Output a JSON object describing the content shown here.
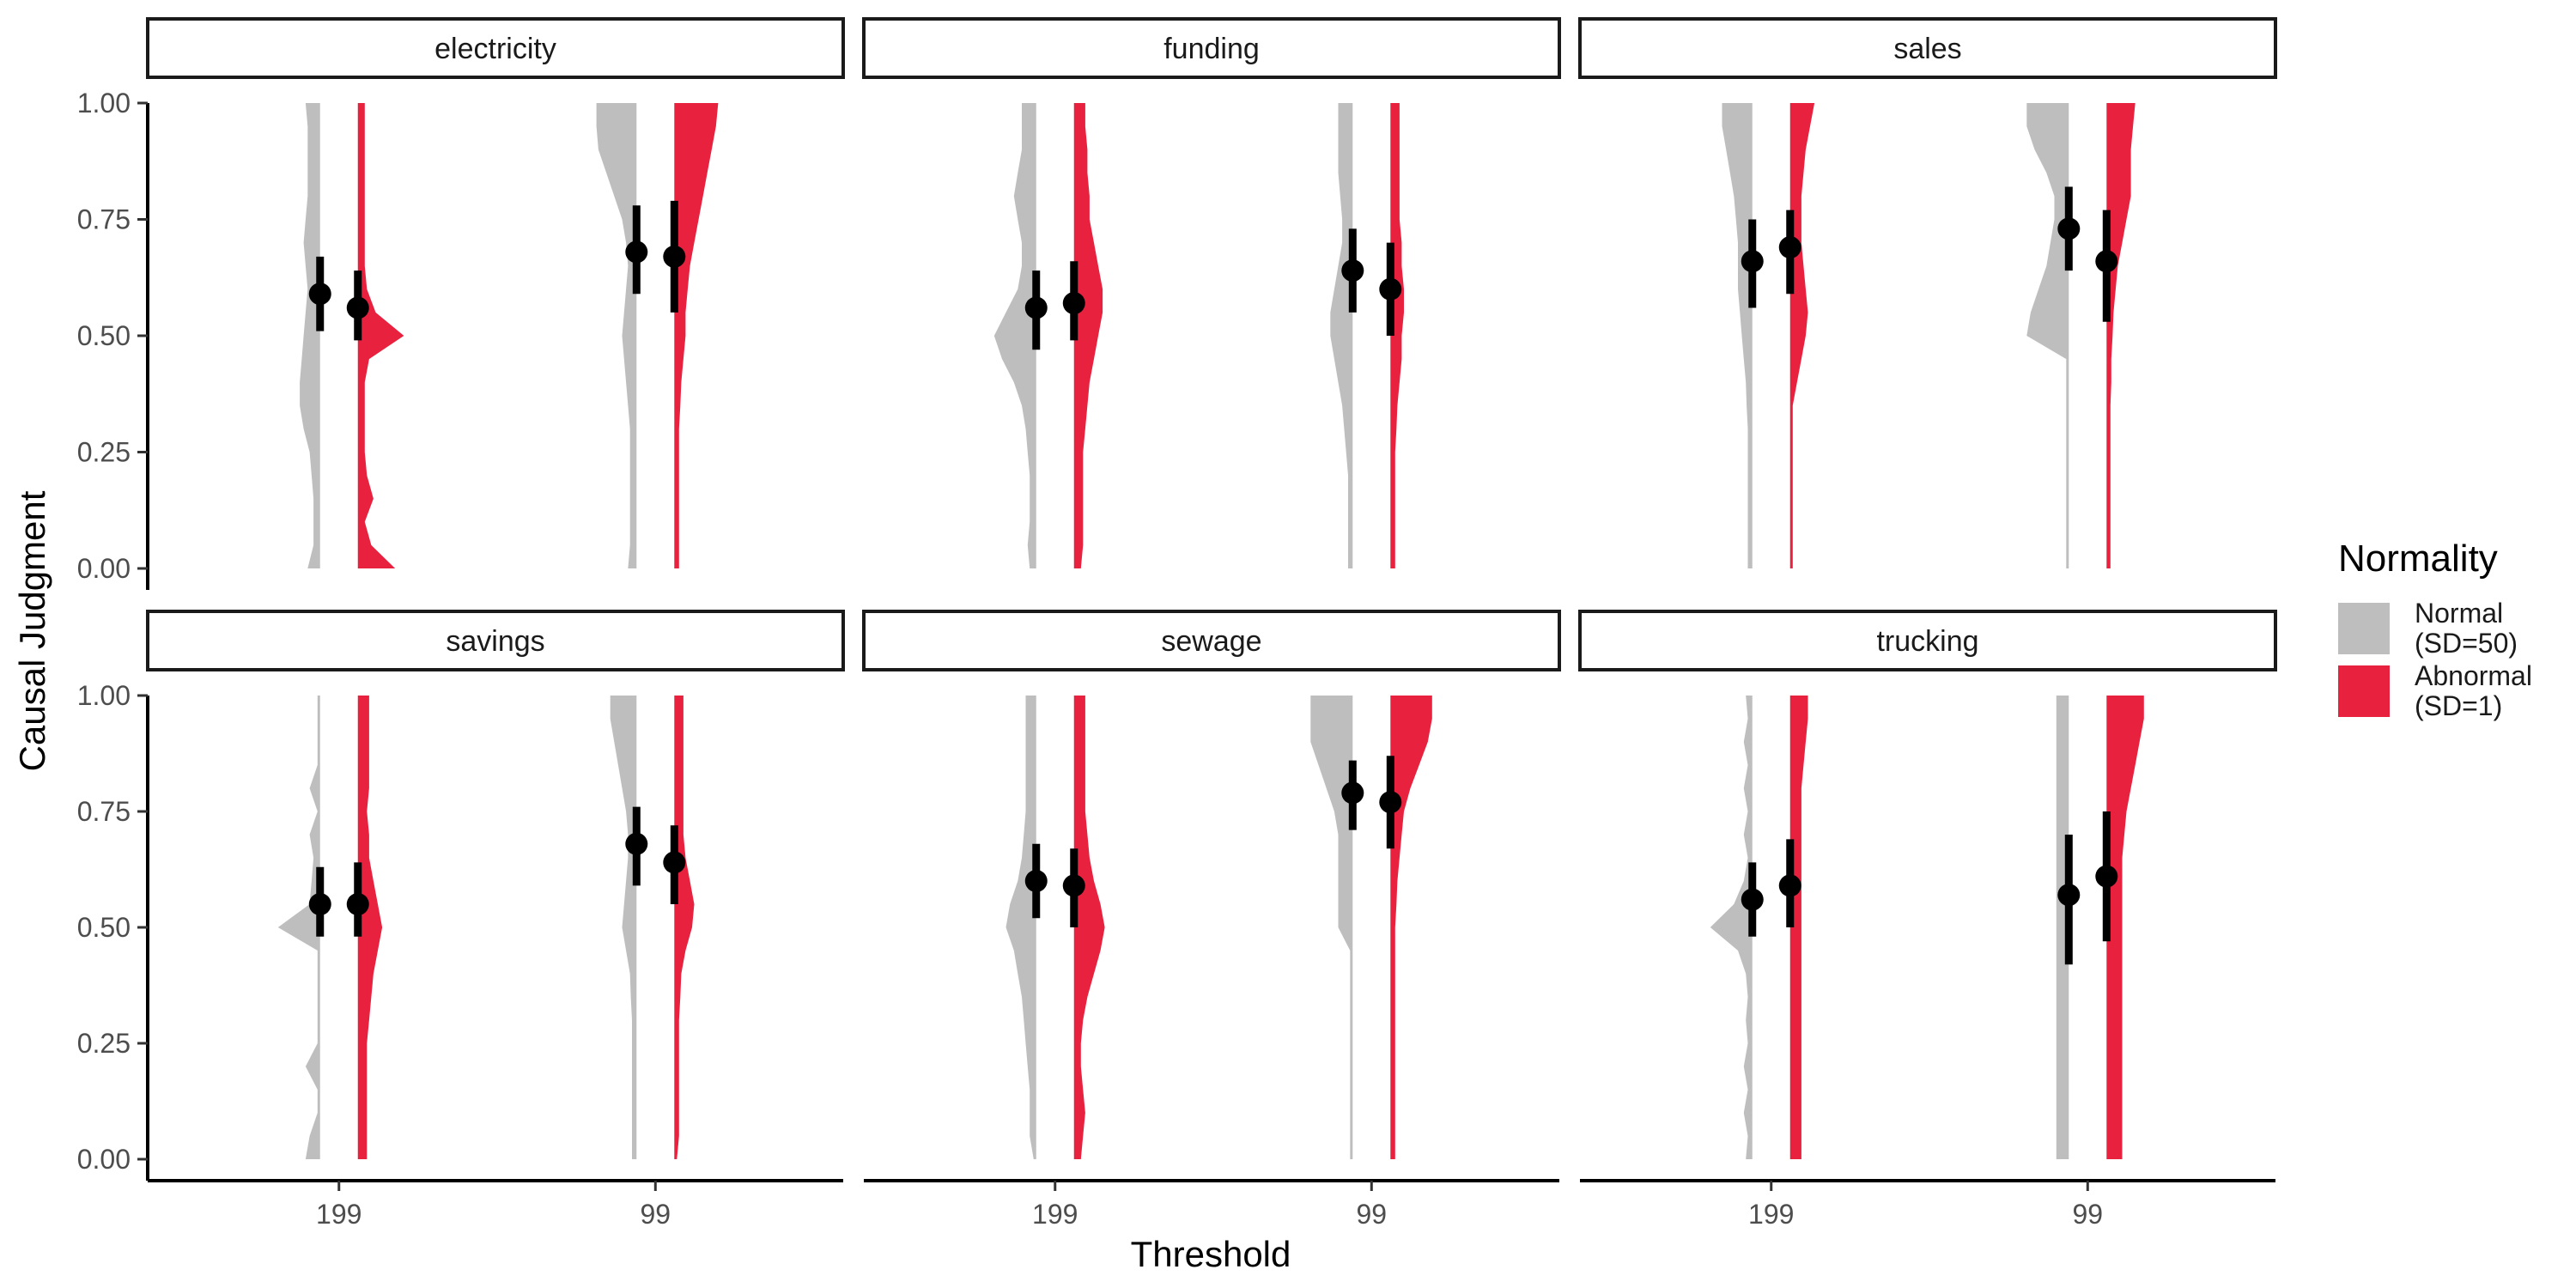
{
  "chart_data": {
    "type": "violin",
    "title": "",
    "xlabel": "Threshold",
    "ylabel": "Causal Judgment",
    "ylim": [
      0,
      1
    ],
    "yticks": [
      "0.00",
      "0.25",
      "0.50",
      "0.75",
      "1.00"
    ],
    "categories": [
      "199",
      "99"
    ],
    "legend": {
      "title": "Normality",
      "placement": "right",
      "entries": [
        {
          "key": "normal",
          "line1": "Normal",
          "line2": "(SD=50)",
          "color": "#bebebe"
        },
        {
          "key": "abnormal",
          "line1": "Abnormal",
          "line2": "(SD=1)",
          "color": "#e8213e"
        }
      ]
    },
    "panels": [
      {
        "name": "electricity",
        "groups": [
          {
            "threshold": "199",
            "normal": {
              "mean": 0.59,
              "lo": 0.51,
              "hi": 0.67,
              "dens": [
                0.25,
                0.1,
                0.1,
                0.1,
                0.15,
                0.2,
                0.35,
                0.45,
                0.45,
                0.4,
                0.35,
                0.3,
                0.25,
                0.3,
                0.35,
                0.3,
                0.25,
                0.25,
                0.25,
                0.25,
                0.3
              ]
            },
            "abnormal": {
              "mean": 0.56,
              "lo": 0.49,
              "hi": 0.64,
              "dens": [
                0.8,
                0.25,
                0.1,
                0.3,
                0.15,
                0.1,
                0.1,
                0.1,
                0.1,
                0.2,
                1.0,
                0.35,
                0.15,
                0.1,
                0.1,
                0.1,
                0.1,
                0.1,
                0.1,
                0.1,
                0.1
              ]
            }
          },
          {
            "threshold": "99",
            "normal": {
              "mean": 0.68,
              "lo": 0.59,
              "hi": 0.78,
              "dens": [
                0.15,
                0.1,
                0.1,
                0.1,
                0.1,
                0.1,
                0.1,
                0.15,
                0.2,
                0.25,
                0.3,
                0.25,
                0.2,
                0.15,
                0.2,
                0.3,
                0.5,
                0.7,
                0.9,
                0.95,
                0.95
              ]
            },
            "abnormal": {
              "mean": 0.67,
              "lo": 0.55,
              "hi": 0.79,
              "dens": [
                0.05,
                0.05,
                0.05,
                0.05,
                0.05,
                0.05,
                0.05,
                0.08,
                0.1,
                0.15,
                0.2,
                0.2,
                0.25,
                0.3,
                0.4,
                0.5,
                0.6,
                0.7,
                0.8,
                0.9,
                0.95
              ]
            }
          }
        ]
      },
      {
        "name": "funding",
        "groups": [
          {
            "threshold": "199",
            "normal": {
              "mean": 0.56,
              "lo": 0.47,
              "hi": 0.64,
              "dens": [
                0.1,
                0.15,
                0.1,
                0.1,
                0.1,
                0.15,
                0.2,
                0.3,
                0.5,
                0.8,
                1.0,
                0.7,
                0.4,
                0.3,
                0.3,
                0.4,
                0.5,
                0.4,
                0.3,
                0.3,
                0.3
              ]
            },
            "abnormal": {
              "mean": 0.57,
              "lo": 0.49,
              "hi": 0.66,
              "dens": [
                0.1,
                0.15,
                0.15,
                0.15,
                0.15,
                0.15,
                0.2,
                0.25,
                0.3,
                0.4,
                0.5,
                0.6,
                0.6,
                0.5,
                0.4,
                0.3,
                0.3,
                0.25,
                0.25,
                0.2,
                0.2
              ]
            }
          },
          {
            "threshold": "99",
            "normal": {
              "mean": 0.64,
              "lo": 0.55,
              "hi": 0.73,
              "dens": [
                0.05,
                0.05,
                0.05,
                0.05,
                0.05,
                0.1,
                0.15,
                0.2,
                0.3,
                0.4,
                0.5,
                0.5,
                0.4,
                0.3,
                0.2,
                0.2,
                0.25,
                0.3,
                0.3,
                0.3,
                0.3
              ]
            },
            "abnormal": {
              "mean": 0.6,
              "lo": 0.5,
              "hi": 0.7,
              "dens": [
                0.05,
                0.05,
                0.05,
                0.05,
                0.05,
                0.05,
                0.08,
                0.1,
                0.15,
                0.2,
                0.2,
                0.25,
                0.25,
                0.2,
                0.2,
                0.15,
                0.15,
                0.15,
                0.15,
                0.15,
                0.15
              ]
            }
          }
        ]
      },
      {
        "name": "sales",
        "groups": [
          {
            "threshold": "199",
            "normal": {
              "mean": 0.66,
              "lo": 0.56,
              "hi": 0.75,
              "dens": [
                0.05,
                0.05,
                0.05,
                0.05,
                0.05,
                0.05,
                0.05,
                0.08,
                0.1,
                0.15,
                0.2,
                0.25,
                0.3,
                0.3,
                0.3,
                0.35,
                0.4,
                0.5,
                0.6,
                0.7,
                0.7
              ]
            },
            "abnormal": {
              "mean": 0.69,
              "lo": 0.59,
              "hi": 0.77,
              "dens": [
                0,
                0,
                0,
                0,
                0,
                0,
                0,
                0,
                0.1,
                0.2,
                0.3,
                0.35,
                0.3,
                0.25,
                0.2,
                0.2,
                0.2,
                0.25,
                0.3,
                0.4,
                0.5
              ]
            }
          },
          {
            "threshold": "99",
            "normal": {
              "mean": 0.73,
              "lo": 0.64,
              "hi": 0.82,
              "dens": [
                0,
                0,
                0,
                0,
                0,
                0,
                0,
                0,
                0,
                0,
                1.0,
                0.9,
                0.7,
                0.5,
                0.4,
                0.3,
                0.3,
                0.5,
                0.8,
                1.0,
                1.0
              ]
            },
            "abnormal": {
              "mean": 0.66,
              "lo": 0.53,
              "hi": 0.77,
              "dens": [
                0.03,
                0.03,
                0.03,
                0.03,
                0.03,
                0.03,
                0.03,
                0.03,
                0.05,
                0.05,
                0.08,
                0.1,
                0.15,
                0.2,
                0.3,
                0.4,
                0.5,
                0.5,
                0.5,
                0.55,
                0.6
              ]
            }
          }
        ]
      },
      {
        "name": "savings",
        "groups": [
          {
            "threshold": "199",
            "normal": {
              "mean": 0.55,
              "lo": 0.48,
              "hi": 0.63,
              "dens": [
                0.3,
                0.2,
                0,
                0,
                0.3,
                0,
                0,
                0,
                0,
                0,
                1.0,
                0.2,
                0.15,
                0.1,
                0.2,
                0,
                0.2,
                0,
                0,
                0,
                0
              ]
            },
            "abnormal": {
              "mean": 0.55,
              "lo": 0.48,
              "hi": 0.64,
              "dens": [
                0.15,
                0.15,
                0.15,
                0.15,
                0.15,
                0.15,
                0.2,
                0.25,
                0.3,
                0.4,
                0.5,
                0.4,
                0.3,
                0.2,
                0.2,
                0.15,
                0.2,
                0.2,
                0.2,
                0.2,
                0.2
              ]
            }
          },
          {
            "threshold": "99",
            "normal": {
              "mean": 0.68,
              "lo": 0.59,
              "hi": 0.76,
              "dens": [
                0.05,
                0.05,
                0.05,
                0.05,
                0.05,
                0.05,
                0.05,
                0.08,
                0.1,
                0.2,
                0.3,
                0.25,
                0.2,
                0.15,
                0.15,
                0.2,
                0.3,
                0.4,
                0.5,
                0.6,
                0.6
              ]
            },
            "abnormal": {
              "mean": 0.64,
              "lo": 0.55,
              "hi": 0.72,
              "dens": [
                0,
                0.05,
                0.05,
                0.05,
                0.05,
                0.05,
                0.05,
                0.08,
                0.1,
                0.2,
                0.35,
                0.4,
                0.3,
                0.2,
                0.15,
                0.15,
                0.15,
                0.15,
                0.15,
                0.15,
                0.15
              ]
            }
          }
        ]
      },
      {
        "name": "sewage",
        "groups": [
          {
            "threshold": "199",
            "normal": {
              "mean": 0.6,
              "lo": 0.52,
              "hi": 0.68,
              "dens": [
                0,
                0.1,
                0.1,
                0.1,
                0.15,
                0.2,
                0.25,
                0.3,
                0.4,
                0.5,
                0.7,
                0.6,
                0.4,
                0.3,
                0.25,
                0.2,
                0.2,
                0.2,
                0.2,
                0.2,
                0.2
              ]
            },
            "abnormal": {
              "mean": 0.59,
              "lo": 0.5,
              "hi": 0.67,
              "dens": [
                0.1,
                0.15,
                0.2,
                0.15,
                0.1,
                0.1,
                0.15,
                0.25,
                0.4,
                0.55,
                0.65,
                0.55,
                0.4,
                0.3,
                0.25,
                0.2,
                0.2,
                0.2,
                0.2,
                0.2,
                0.2
              ]
            }
          },
          {
            "threshold": "99",
            "normal": {
              "mean": 0.79,
              "lo": 0.71,
              "hi": 0.86,
              "dens": [
                0,
                0,
                0,
                0,
                0,
                0,
                0,
                0,
                0,
                0,
                0.3,
                0.3,
                0.3,
                0.3,
                0.3,
                0.4,
                0.6,
                0.8,
                1.0,
                1.0,
                1.0
              ]
            },
            "abnormal": {
              "mean": 0.77,
              "lo": 0.67,
              "hi": 0.87,
              "dens": [
                0.05,
                0.05,
                0.05,
                0.05,
                0.05,
                0.05,
                0.05,
                0.05,
                0.05,
                0.05,
                0.05,
                0.08,
                0.1,
                0.15,
                0.2,
                0.25,
                0.4,
                0.6,
                0.8,
                0.9,
                0.9
              ]
            }
          }
        ]
      },
      {
        "name": "trucking",
        "groups": [
          {
            "threshold": "199",
            "normal": {
              "mean": 0.56,
              "lo": 0.48,
              "hi": 0.64,
              "dens": [
                0.1,
                0.05,
                0.15,
                0.05,
                0.15,
                0.05,
                0.1,
                0.05,
                0.1,
                0.3,
                1.0,
                0.4,
                0.15,
                0.05,
                0.15,
                0.05,
                0.15,
                0.05,
                0.15,
                0.05,
                0.1
              ]
            },
            "abnormal": {
              "mean": 0.59,
              "lo": 0.5,
              "hi": 0.69,
              "dens": [
                0.2,
                0.2,
                0.2,
                0.2,
                0.2,
                0.2,
                0.2,
                0.2,
                0.2,
                0.2,
                0.2,
                0.2,
                0.2,
                0.2,
                0.2,
                0.2,
                0.2,
                0.25,
                0.3,
                0.35,
                0.35
              ]
            }
          },
          {
            "threshold": "99",
            "normal": {
              "mean": 0.57,
              "lo": 0.42,
              "hi": 0.7,
              "dens": [
                0.25,
                0.25,
                0.25,
                0.25,
                0.25,
                0.25,
                0.25,
                0.25,
                0.25,
                0.25,
                0.25,
                0.25,
                0.25,
                0.25,
                0.25,
                0.25,
                0.25,
                0.25,
                0.25,
                0.25,
                0.25
              ]
            },
            "abnormal": {
              "mean": 0.61,
              "lo": 0.47,
              "hi": 0.75,
              "dens": [
                0.3,
                0.3,
                0.3,
                0.3,
                0.3,
                0.3,
                0.3,
                0.3,
                0.3,
                0.3,
                0.3,
                0.3,
                0.3,
                0.3,
                0.35,
                0.4,
                0.5,
                0.6,
                0.7,
                0.8,
                0.8
              ]
            }
          }
        ]
      }
    ]
  }
}
